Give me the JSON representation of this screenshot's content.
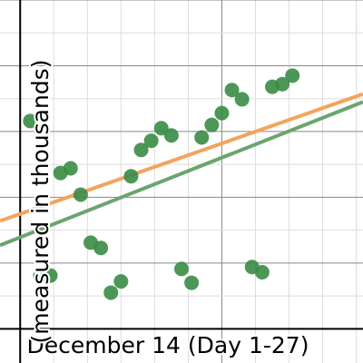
{
  "chart_data": {
    "type": "scatter",
    "x_label": "December 14 (Day 1-27)",
    "y_label": "(measured in thousands)",
    "x": [
      1,
      2,
      3,
      4,
      5,
      6,
      7,
      8,
      9,
      10,
      11,
      12,
      13,
      14,
      15,
      16,
      17,
      18,
      19,
      20,
      21,
      22,
      23,
      24,
      25,
      26,
      27
    ],
    "series": [
      {
        "color": "#388c46",
        "values": [
          3.16,
          0.81,
          0.81,
          2.37,
          2.44,
          2.04,
          1.31,
          1.23,
          0.55,
          0.72,
          2.32,
          2.72,
          2.86,
          3.05,
          2.94,
          0.91,
          0.7,
          2.91,
          3.1,
          3.28,
          3.63,
          3.49,
          0.94,
          0.86,
          3.68,
          3.72,
          3.85
        ]
      }
    ],
    "lines": [
      {
        "color": "#f5a35c",
        "x": [
          -2,
          34
        ],
        "values": [
          1.64,
          3.57
        ]
      },
      {
        "color": "#6aa56e",
        "x": [
          -2,
          34
        ],
        "values": [
          1.27,
          3.45
        ]
      }
    ],
    "xlim": [
      -2,
      34
    ],
    "ylim": [
      -0.52,
      5
    ],
    "xticks": [
      0,
      3.33,
      6.67,
      10,
      13.33,
      16.67,
      20,
      23.33,
      26.67,
      30,
      33.33
    ],
    "yticks": [
      0,
      0.5,
      1,
      1.5,
      2,
      2.5,
      3,
      3.5,
      4,
      4.5,
      5
    ],
    "grid": true
  }
}
